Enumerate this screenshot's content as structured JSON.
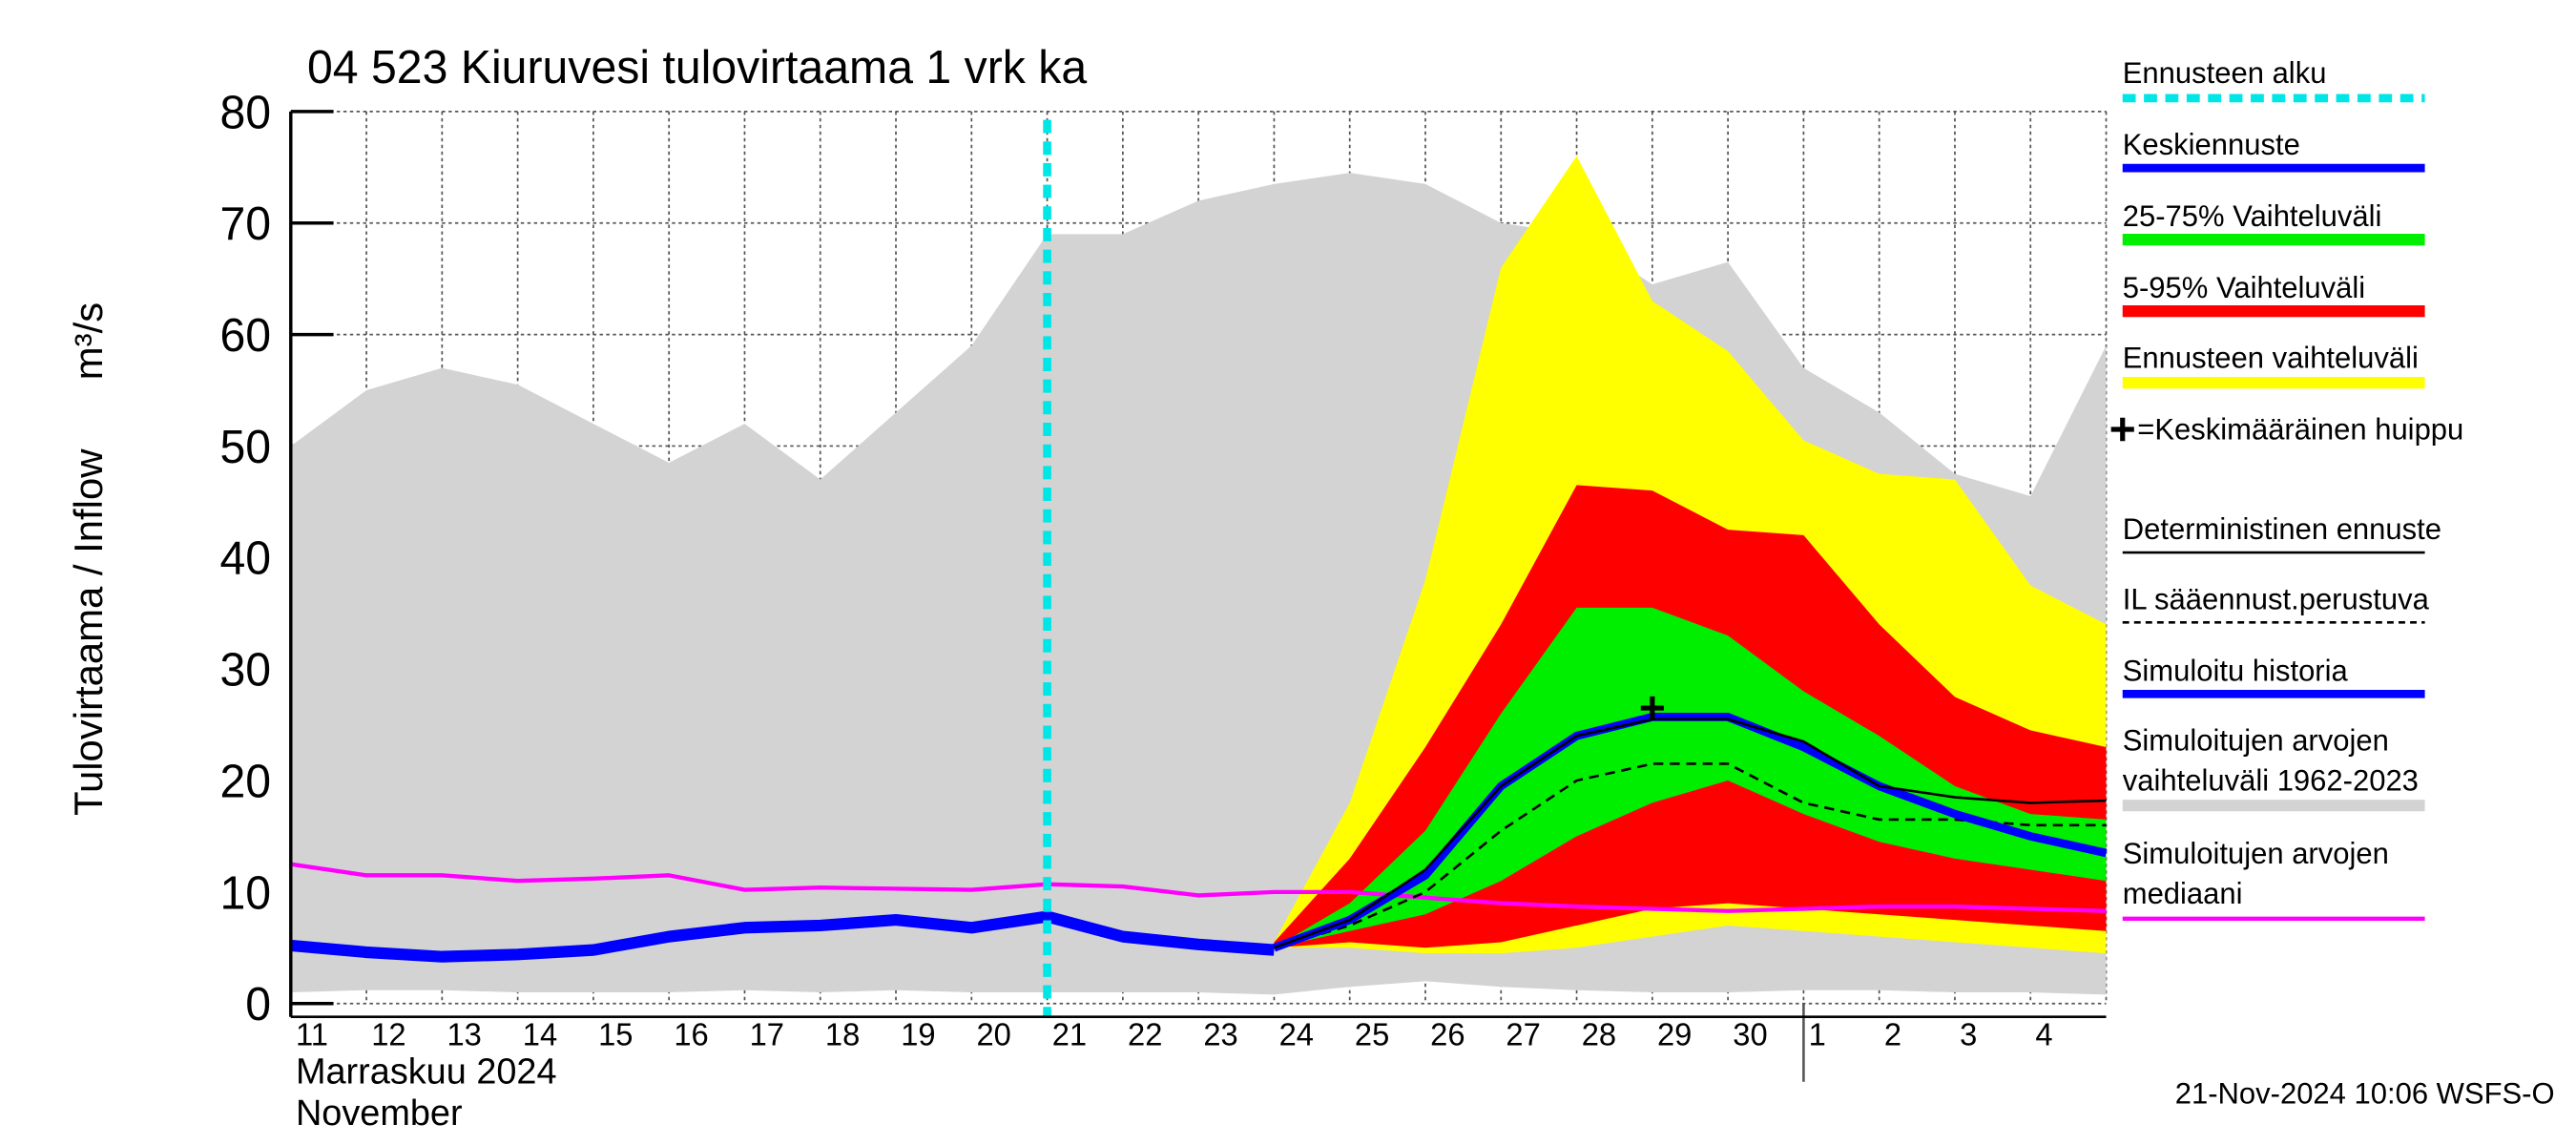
{
  "chart_data": {
    "type": "line",
    "title": "04 523 Kiuruvesi tulovirtaama 1 vrk ka",
    "ylabel": "Tulovirtaama / Inflow",
    "yunit": "m³/s",
    "month_label": "Marraskuu 2024",
    "month_label_en": "November",
    "footer": "21-Nov-2024 10:06 WSFS-O",
    "categories": [
      "11",
      "12",
      "13",
      "14",
      "15",
      "16",
      "17",
      "18",
      "19",
      "20",
      "21",
      "22",
      "23",
      "24",
      "25",
      "26",
      "27",
      "28",
      "29",
      "30",
      "1",
      "2",
      "3",
      "4",
      null
    ],
    "ylim": [
      0,
      80
    ],
    "yticks": [
      0,
      10,
      20,
      30,
      40,
      50,
      60,
      70,
      80
    ],
    "grid": true,
    "forecast_start": {
      "name": "Ennusteen alku",
      "x": "21",
      "color": "#00e6e6"
    },
    "peak": {
      "name": "=Keskimääräinen huippu",
      "x": "29",
      "value": 26.5,
      "color": "#000000"
    },
    "series": [
      {
        "name": "Keskiennuste",
        "color": "#0000ff",
        "width": 5,
        "values": [
          null,
          null,
          null,
          null,
          null,
          null,
          null,
          null,
          null,
          null,
          null,
          null,
          null,
          5,
          7.5,
          11.5,
          19.5,
          24,
          25.7,
          25.7,
          23,
          19.5,
          17,
          15,
          13.5
        ]
      },
      {
        "name": "25-75% Vaihteluväli",
        "color": "#00ee00",
        "values": [
          null,
          null,
          null,
          null,
          null,
          null,
          null,
          null,
          null,
          null,
          null,
          null,
          null,
          5,
          9,
          15.5,
          26,
          35.5,
          35.5,
          33,
          28,
          24,
          19.5,
          17,
          16.5
        ],
        "lower": [
          null,
          null,
          null,
          null,
          null,
          null,
          null,
          null,
          null,
          null,
          null,
          null,
          null,
          5,
          6.5,
          8,
          11,
          15,
          18,
          20,
          17,
          14.5,
          13,
          12,
          11
        ]
      },
      {
        "name": "5-95% Vaihteluväli",
        "color": "#ff0000",
        "values": [
          null,
          null,
          null,
          null,
          null,
          null,
          null,
          null,
          null,
          null,
          null,
          null,
          null,
          5.5,
          13,
          23,
          34,
          46.5,
          46,
          42.5,
          42,
          34,
          27.5,
          24.5,
          23
        ],
        "lower": [
          null,
          null,
          null,
          null,
          null,
          null,
          null,
          null,
          null,
          null,
          null,
          null,
          null,
          5,
          5.5,
          5,
          5.5,
          7,
          8.5,
          9,
          8.5,
          8,
          7.5,
          7,
          6.5
        ]
      },
      {
        "name": "Ennusteen vaihteluväli",
        "color": "#ffff00",
        "values": [
          null,
          null,
          null,
          null,
          null,
          null,
          null,
          null,
          null,
          null,
          null,
          null,
          null,
          5.5,
          18,
          38,
          66,
          76,
          63,
          58.5,
          50.5,
          47.5,
          47,
          37.5,
          34
        ],
        "lower": [
          null,
          null,
          null,
          null,
          null,
          null,
          null,
          null,
          null,
          null,
          null,
          null,
          null,
          5,
          5,
          4.5,
          4.5,
          5,
          6,
          7,
          6.5,
          6,
          5.5,
          5,
          4.5
        ]
      },
      {
        "name": "Deterministinen ennuste",
        "color": "#000000",
        "width": 1.5,
        "values": [
          null,
          null,
          null,
          null,
          null,
          null,
          null,
          null,
          null,
          null,
          null,
          null,
          null,
          5,
          7.5,
          12,
          19.5,
          24,
          25.5,
          25.5,
          23.5,
          19.5,
          18.5,
          18,
          18.2
        ]
      },
      {
        "name": "IL sääennust.perustuva",
        "color": "#000000",
        "width": 1.5,
        "dash": true,
        "values": [
          null,
          null,
          null,
          null,
          null,
          null,
          null,
          null,
          null,
          null,
          null,
          null,
          null,
          5,
          7,
          10,
          15.5,
          20,
          21.5,
          21.5,
          18,
          16.5,
          16.5,
          16,
          16
        ]
      },
      {
        "name": "Simuloitu historia",
        "color": "#0000ff",
        "width": 7,
        "values": [
          5.2,
          4.6,
          4.2,
          4.4,
          4.8,
          6,
          6.8,
          7,
          7.5,
          6.8,
          7.8,
          6,
          5.3,
          4.8,
          null,
          null,
          null,
          null,
          null,
          null,
          null,
          null,
          null,
          null,
          null
        ]
      },
      {
        "name": "Simuloitujen arvojen vaihteluväli 1962-2023",
        "color": "#d3d3d3",
        "values": [
          50,
          55,
          57,
          55.5,
          52,
          48.5,
          52,
          47,
          53,
          59,
          69,
          69,
          72,
          73.5,
          74.5,
          73.5,
          70,
          69,
          64.5,
          66.5,
          57,
          53,
          47.5,
          45.5,
          59
        ],
        "lower": [
          1,
          1.2,
          1.2,
          1,
          1,
          1,
          1.2,
          1,
          1.2,
          1,
          1,
          1,
          1,
          0.8,
          1.5,
          2,
          1.5,
          1.2,
          1,
          1,
          1.2,
          1.2,
          1,
          1,
          0.8
        ]
      },
      {
        "name": "Simuloitujen arvojen mediaani",
        "color": "#ff00ff",
        "width": 2.5,
        "values": [
          12.5,
          11.5,
          11.5,
          11,
          11.2,
          11.5,
          10.2,
          10.4,
          10.3,
          10.2,
          10.7,
          10.5,
          9.7,
          10,
          10,
          9.5,
          9,
          8.7,
          8.5,
          8.3,
          8.5,
          8.7,
          8.7,
          8.5,
          8.3
        ]
      }
    ]
  }
}
